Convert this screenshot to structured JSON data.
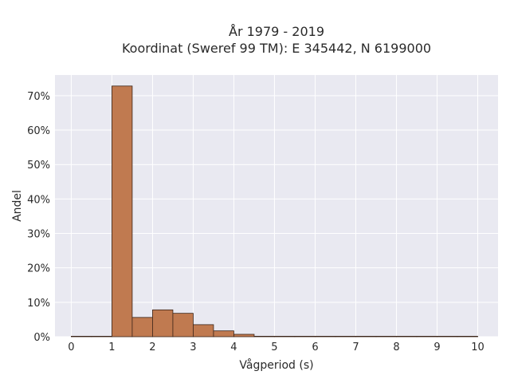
{
  "chart_data": {
    "type": "bar",
    "title_lines": [
      "År 1979 - 2019",
      "Koordinat (Sweref 99 TM): E 345442, N 6199000"
    ],
    "xlabel": "Vågperiod (s)",
    "ylabel": "Andel",
    "xlim": [
      -0.4,
      10.5
    ],
    "ylim": [
      0,
      0.76
    ],
    "x_ticks": [
      0,
      1,
      2,
      3,
      4,
      5,
      6,
      7,
      8,
      9,
      10
    ],
    "y_ticks": [
      0,
      0.1,
      0.2,
      0.3,
      0.4,
      0.5,
      0.6,
      0.7
    ],
    "y_tick_labels": [
      "0%",
      "10%",
      "20%",
      "30%",
      "40%",
      "50%",
      "60%",
      "70%"
    ],
    "bin_width": 0.5,
    "bins": [
      {
        "start": 0.0,
        "value": 0.001
      },
      {
        "start": 0.5,
        "value": 0.0
      },
      {
        "start": 1.0,
        "value": 0.728
      },
      {
        "start": 1.5,
        "value": 0.056
      },
      {
        "start": 2.0,
        "value": 0.078
      },
      {
        "start": 2.5,
        "value": 0.068
      },
      {
        "start": 3.0,
        "value": 0.035
      },
      {
        "start": 3.5,
        "value": 0.017
      },
      {
        "start": 4.0,
        "value": 0.007
      },
      {
        "start": 4.5,
        "value": 0.001
      },
      {
        "start": 5.0,
        "value": 0.0
      },
      {
        "start": 5.5,
        "value": 0.0
      },
      {
        "start": 6.0,
        "value": 0.0
      },
      {
        "start": 6.5,
        "value": 0.001
      },
      {
        "start": 7.0,
        "value": 0.001
      },
      {
        "start": 7.5,
        "value": 0.001
      },
      {
        "start": 8.0,
        "value": 0.001
      },
      {
        "start": 8.5,
        "value": 0.0
      },
      {
        "start": 9.0,
        "value": 0.0
      },
      {
        "start": 9.5,
        "value": 0.0
      }
    ],
    "grid": true,
    "colors": {
      "bar_fill": "#c07a50",
      "bar_edge": "#3a2418",
      "plot_bg": "#e9e9f1",
      "grid": "#ffffff"
    }
  }
}
